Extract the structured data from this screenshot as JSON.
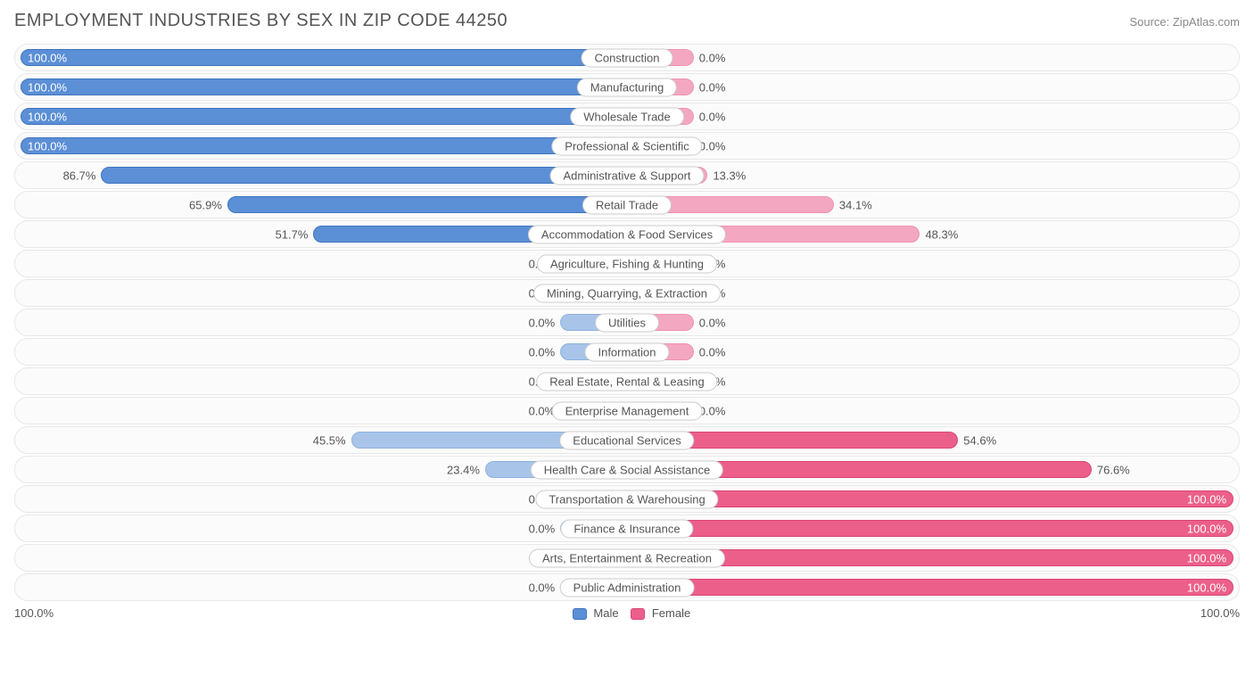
{
  "title": "EMPLOYMENT INDUSTRIES BY SEX IN ZIP CODE 44250",
  "source": "Source: ZipAtlas.com",
  "axis_left": "100.0%",
  "axis_right": "100.0%",
  "legend": {
    "male": "Male",
    "female": "Female"
  },
  "colors": {
    "male_fill_strong": "#5b8fd6",
    "male_border_strong": "#3f74bd",
    "male_fill_light": "#a8c4e8",
    "male_border_light": "#8fb2df",
    "female_fill_strong": "#ec5f8a",
    "female_border_strong": "#d94575",
    "female_fill_light": "#f4a7c0",
    "female_border_light": "#ee94b2",
    "row_bg": "#fbfbfb",
    "row_border": "#e8e8e8",
    "text": "#555555"
  },
  "min_bar_pct": 11,
  "rows": [
    {
      "label": "Construction",
      "male": 100.0,
      "female": 0.0,
      "male_strong": true,
      "female_strong": false
    },
    {
      "label": "Manufacturing",
      "male": 100.0,
      "female": 0.0,
      "male_strong": true,
      "female_strong": false
    },
    {
      "label": "Wholesale Trade",
      "male": 100.0,
      "female": 0.0,
      "male_strong": true,
      "female_strong": false
    },
    {
      "label": "Professional & Scientific",
      "male": 100.0,
      "female": 0.0,
      "male_strong": true,
      "female_strong": false
    },
    {
      "label": "Administrative & Support",
      "male": 86.7,
      "female": 13.3,
      "male_strong": true,
      "female_strong": false
    },
    {
      "label": "Retail Trade",
      "male": 65.9,
      "female": 34.1,
      "male_strong": true,
      "female_strong": false
    },
    {
      "label": "Accommodation & Food Services",
      "male": 51.7,
      "female": 48.3,
      "male_strong": true,
      "female_strong": false
    },
    {
      "label": "Agriculture, Fishing & Hunting",
      "male": 0.0,
      "female": 0.0,
      "male_strong": false,
      "female_strong": false
    },
    {
      "label": "Mining, Quarrying, & Extraction",
      "male": 0.0,
      "female": 0.0,
      "male_strong": false,
      "female_strong": false
    },
    {
      "label": "Utilities",
      "male": 0.0,
      "female": 0.0,
      "male_strong": false,
      "female_strong": false
    },
    {
      "label": "Information",
      "male": 0.0,
      "female": 0.0,
      "male_strong": false,
      "female_strong": false
    },
    {
      "label": "Real Estate, Rental & Leasing",
      "male": 0.0,
      "female": 0.0,
      "male_strong": false,
      "female_strong": false
    },
    {
      "label": "Enterprise Management",
      "male": 0.0,
      "female": 0.0,
      "male_strong": false,
      "female_strong": false
    },
    {
      "label": "Educational Services",
      "male": 45.5,
      "female": 54.6,
      "male_strong": false,
      "female_strong": true
    },
    {
      "label": "Health Care & Social Assistance",
      "male": 23.4,
      "female": 76.6,
      "male_strong": false,
      "female_strong": true
    },
    {
      "label": "Transportation & Warehousing",
      "male": 0.0,
      "female": 100.0,
      "male_strong": false,
      "female_strong": true
    },
    {
      "label": "Finance & Insurance",
      "male": 0.0,
      "female": 100.0,
      "male_strong": false,
      "female_strong": true
    },
    {
      "label": "Arts, Entertainment & Recreation",
      "male": 0.0,
      "female": 100.0,
      "male_strong": false,
      "female_strong": true
    },
    {
      "label": "Public Administration",
      "male": 0.0,
      "female": 100.0,
      "male_strong": false,
      "female_strong": true
    }
  ]
}
